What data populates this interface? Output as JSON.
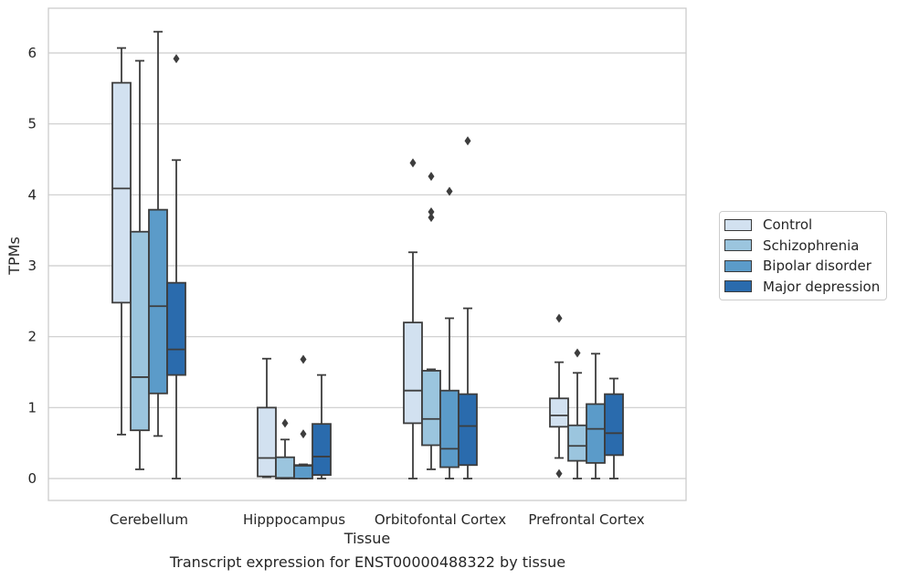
{
  "chart_data": {
    "type": "box",
    "title": "",
    "caption": "Transcript expression for ENST00000488322 by tissue",
    "xlabel": "Tissue",
    "ylabel": "TPMs",
    "ylim": [
      -0.3,
      6.6
    ],
    "yticks": [
      "0",
      "1",
      "2",
      "3",
      "4",
      "5",
      "6"
    ],
    "grid": true,
    "legend_position": "right",
    "categories": [
      "Cerebellum",
      "Hipppocampus",
      "Orbitofontal Cortex",
      "Prefrontal Cortex"
    ],
    "series": [
      {
        "name": "Control",
        "color": "#d2e1f0",
        "boxes": [
          {
            "whislo": 0.62,
            "q1": 2.48,
            "med": 4.09,
            "q3": 5.58,
            "whishi": 6.07,
            "fliers": []
          },
          {
            "whislo": 0.02,
            "q1": 0.03,
            "med": 0.29,
            "q3": 1.0,
            "whishi": 1.69,
            "fliers": []
          },
          {
            "whislo": 0.0,
            "q1": 0.78,
            "med": 1.24,
            "q3": 2.2,
            "whishi": 3.19,
            "fliers": [
              4.45
            ]
          },
          {
            "whislo": 0.29,
            "q1": 0.73,
            "med": 0.89,
            "q3": 1.13,
            "whishi": 1.64,
            "fliers": [
              0.07,
              2.26
            ]
          }
        ]
      },
      {
        "name": "Schizophrenia",
        "color": "#9bc5de",
        "boxes": [
          {
            "whislo": 0.13,
            "q1": 0.68,
            "med": 1.43,
            "q3": 3.48,
            "whishi": 5.89,
            "fliers": []
          },
          {
            "whislo": 0.0,
            "q1": 0.0,
            "med": 0.01,
            "q3": 0.3,
            "whishi": 0.55,
            "fliers": [
              0.78
            ]
          },
          {
            "whislo": 0.13,
            "q1": 0.47,
            "med": 0.84,
            "q3": 1.52,
            "whishi": 1.54,
            "fliers": [
              3.68,
              3.76,
              4.26
            ]
          },
          {
            "whislo": 0.0,
            "q1": 0.25,
            "med": 0.46,
            "q3": 0.75,
            "whishi": 1.49,
            "fliers": [
              1.77
            ]
          }
        ]
      },
      {
        "name": "Bipolar disorder",
        "color": "#5b9bc9",
        "boxes": [
          {
            "whislo": 0.6,
            "q1": 1.2,
            "med": 2.43,
            "q3": 3.79,
            "whishi": 6.3,
            "fliers": []
          },
          {
            "whislo": 0.0,
            "q1": 0.0,
            "med": 0.18,
            "q3": 0.19,
            "whishi": 0.2,
            "fliers": [
              0.63,
              1.68
            ]
          },
          {
            "whislo": 0.0,
            "q1": 0.16,
            "med": 0.42,
            "q3": 1.24,
            "whishi": 2.26,
            "fliers": [
              4.05
            ]
          },
          {
            "whislo": 0.0,
            "q1": 0.22,
            "med": 0.7,
            "q3": 1.05,
            "whishi": 1.76,
            "fliers": []
          }
        ]
      },
      {
        "name": "Major depression",
        "color": "#2a6bad",
        "boxes": [
          {
            "whislo": 0.0,
            "q1": 1.46,
            "med": 1.82,
            "q3": 2.76,
            "whishi": 4.49,
            "fliers": [
              5.92
            ]
          },
          {
            "whislo": 0.0,
            "q1": 0.05,
            "med": 0.31,
            "q3": 0.77,
            "whishi": 1.46,
            "fliers": []
          },
          {
            "whislo": 0.0,
            "q1": 0.19,
            "med": 0.74,
            "q3": 1.19,
            "whishi": 2.4,
            "fliers": [
              4.76
            ]
          },
          {
            "whislo": 0.0,
            "q1": 0.33,
            "med": 0.64,
            "q3": 1.19,
            "whishi": 1.41,
            "fliers": []
          }
        ]
      }
    ]
  }
}
